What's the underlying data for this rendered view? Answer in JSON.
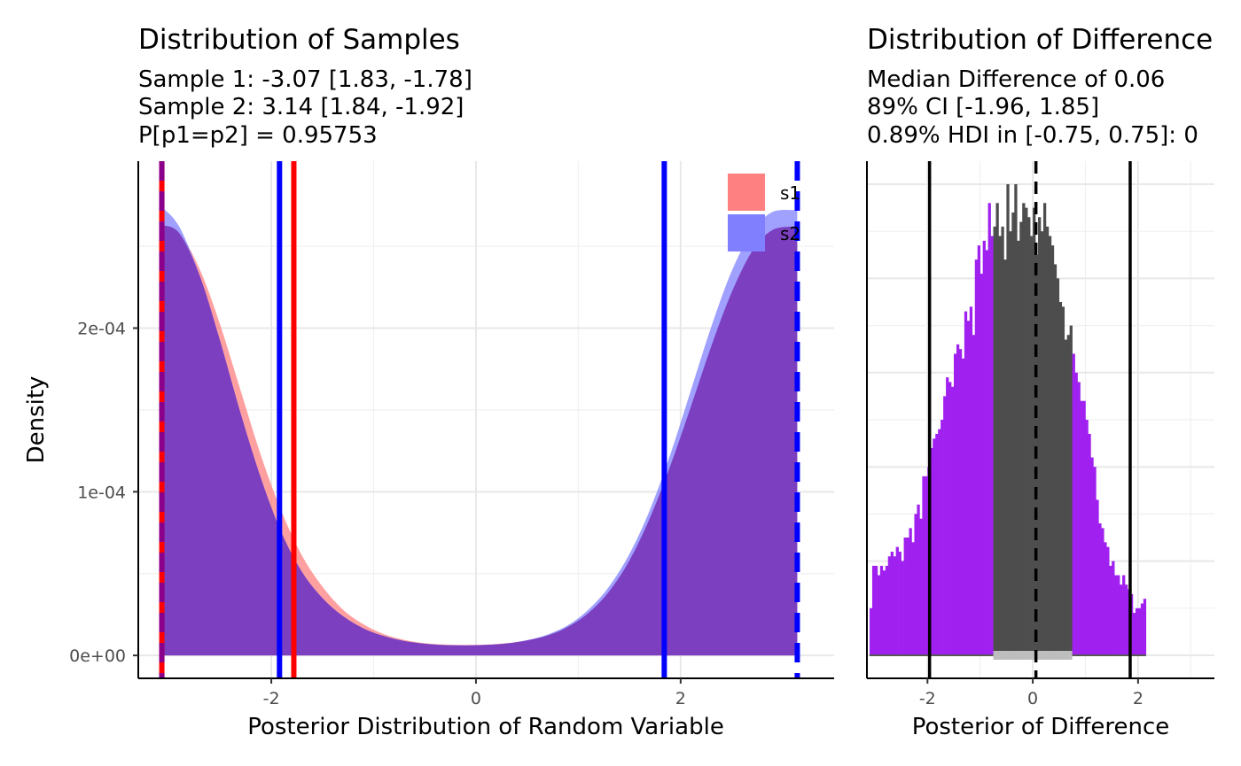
{
  "chart_data": [
    {
      "type": "area",
      "title": "Distribution of Samples",
      "subtitle_lines": [
        "Sample 1:  -3.07 [1.83, -1.78]",
        "Sample 2:  3.14 [1.84, -1.92]",
        "P[p1=p2] = 0.95753"
      ],
      "xlabel": "Posterior Distribution of Random Variable",
      "ylabel": "Density",
      "xlim": [
        -3.3,
        3.5
      ],
      "ylim": [
        -1.4e-05,
        0.000302
      ],
      "x_ticks": [
        -2,
        0,
        2
      ],
      "x_tick_labels": [
        "-2",
        "0",
        "2"
      ],
      "y_ticks": [
        0,
        0.0001,
        0.0002
      ],
      "y_tick_labels": [
        "0e+00",
        "1e-04",
        "2e-04"
      ],
      "grid": true,
      "legend_position": "top-right",
      "series": [
        {
          "name": "s1",
          "color": "#ff8080",
          "x": [
            -3.07,
            -2.9,
            -2.7,
            -2.5,
            -2.3,
            -2.1,
            -1.9,
            -1.7,
            -1.5,
            -1.3,
            -1.1,
            -0.9,
            -0.7,
            -0.5,
            -0.3,
            -0.1,
            0.1,
            0.3,
            0.5,
            0.7,
            0.9,
            1.1,
            1.3,
            1.5,
            1.7,
            1.9,
            2.1,
            2.3,
            2.5,
            2.7,
            2.9,
            3.14
          ],
          "values": [
            0.000263,
            0.000258,
            0.000236,
            0.000202,
            0.000162,
            0.000122,
            8.8e-05,
            6.1e-05,
            4.2e-05,
            2.8e-05,
            1.9e-05,
            1.3e-05,
            9.5e-06,
            7.5e-06,
            6.6e-06,
            6.4e-06,
            6.6e-06,
            7.5e-06,
            9.2e-06,
            1.22e-05,
            1.75e-05,
            2.6e-05,
            3.9e-05,
            5.8e-05,
            8.4e-05,
            0.000116,
            0.000152,
            0.000189,
            0.000222,
            0.000247,
            0.00026,
            0.000262
          ]
        },
        {
          "name": "s2",
          "color": "#8080ff",
          "x": [
            -3.07,
            -2.9,
            -2.7,
            -2.5,
            -2.3,
            -2.1,
            -1.9,
            -1.7,
            -1.5,
            -1.3,
            -1.1,
            -0.9,
            -0.7,
            -0.5,
            -0.3,
            -0.1,
            0.1,
            0.3,
            0.5,
            0.7,
            0.9,
            1.1,
            1.3,
            1.5,
            1.7,
            1.9,
            2.1,
            2.3,
            2.5,
            2.7,
            2.9,
            3.14
          ],
          "values": [
            0.000274,
            0.000262,
            0.000232,
            0.000192,
            0.000148,
            0.000108,
            7.5e-05,
            5.1e-05,
            3.5e-05,
            2.4e-05,
            1.65e-05,
            1.18e-05,
            8.8e-06,
            7.1e-06,
            6.3e-06,
            6.1e-06,
            6.4e-06,
            7.3e-06,
            9.3e-06,
            1.28e-05,
            1.85e-05,
            2.8e-05,
            4.2e-05,
            6.2e-05,
            8.9e-05,
            0.000123,
            0.000162,
            0.000201,
            0.000235,
            0.000259,
            0.000271,
            0.000272
          ]
        }
      ],
      "vlines": [
        {
          "x": -3.07,
          "color": "#ff0000",
          "dash": false
        },
        {
          "x": -1.78,
          "color": "#ff0000",
          "dash": false
        },
        {
          "x": -3.07,
          "color": "#8b008b",
          "dash": true
        },
        {
          "x": -1.92,
          "color": "#0000ff",
          "dash": false
        },
        {
          "x": 1.84,
          "color": "#0000ff",
          "dash": false
        },
        {
          "x": 3.14,
          "color": "#0000ff",
          "dash": true
        }
      ]
    },
    {
      "type": "histogram",
      "title": "Distribution of Difference",
      "subtitle_lines": [
        "Median Difference of 0.06",
        "89% CI [-1.96, 1.85]",
        "0.89% HDI in [-0.75, 0.75]: 0"
      ],
      "xlabel": "Posterior of Difference",
      "ylabel": "",
      "xlim": [
        -3.15,
        3.45
      ],
      "ylim": [
        0,
        1
      ],
      "x_ticks": [
        -2,
        0,
        2
      ],
      "x_tick_labels": [
        "-2",
        "0",
        "2"
      ],
      "grid": true,
      "bin_start": -3.1,
      "bin_width": 0.05,
      "counts": [
        0.1,
        0.19,
        0.19,
        0.17,
        0.19,
        0.18,
        0.19,
        0.21,
        0.22,
        0.21,
        0.23,
        0.22,
        0.2,
        0.25,
        0.25,
        0.27,
        0.24,
        0.3,
        0.32,
        0.29,
        0.38,
        0.38,
        0.4,
        0.44,
        0.46,
        0.47,
        0.48,
        0.5,
        0.55,
        0.59,
        0.58,
        0.57,
        0.64,
        0.66,
        0.65,
        0.63,
        0.73,
        0.71,
        0.74,
        0.68,
        0.84,
        0.87,
        0.81,
        0.88,
        0.86,
        0.96,
        0.89,
        0.91,
        0.96,
        0.89,
        0.91,
        0.84,
        1.0,
        0.9,
        0.94,
        1.0,
        0.88,
        0.92,
        0.96,
        0.95,
        0.93,
        0.89,
        0.95,
        0.85,
        0.93,
        0.9,
        0.96,
        0.91,
        0.89,
        0.87,
        0.83,
        0.8,
        0.75,
        0.74,
        0.67,
        0.68,
        0.7,
        0.64,
        0.6,
        0.58,
        0.54,
        0.54,
        0.5,
        0.47,
        0.42,
        0.4,
        0.33,
        0.28,
        0.27,
        0.24,
        0.23,
        0.19,
        0.2,
        0.17,
        0.17,
        0.15,
        0.17,
        0.15,
        0.14,
        0.13,
        0.09,
        0.1,
        0.1,
        0.11,
        0.12
      ],
      "hdi_range": [
        -0.75,
        0.75
      ],
      "colors": {
        "inside": "#4d4d4d",
        "outside": "#a020f0",
        "hdi_bar": "#bebebe"
      },
      "vlines": [
        {
          "x": -1.96,
          "color": "#000000",
          "dash": false
        },
        {
          "x": 0.06,
          "color": "#000000",
          "dash": true
        },
        {
          "x": 1.85,
          "color": "#000000",
          "dash": false
        }
      ]
    }
  ]
}
